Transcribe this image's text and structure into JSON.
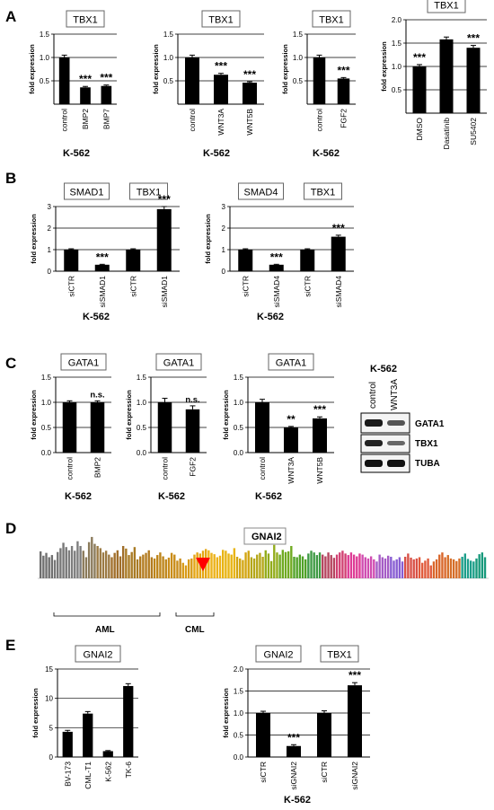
{
  "colors": {
    "bar": "#000000",
    "arrow": "#ff0000",
    "gnai2_bars": [
      "#6f6f6f",
      "#777777",
      "#7d7d7d",
      "#8a7a5a",
      "#9b7a43",
      "#a06e2a",
      "#a87a24",
      "#b27a1e",
      "#bd8418",
      "#c98c18",
      "#d79a16",
      "#e4a514",
      "#ecb21a",
      "#e8b412",
      "#d2a510",
      "#b4a617",
      "#92ac1a",
      "#70aa20",
      "#4fa126",
      "#3e9a44",
      "#b5445e",
      "#d14072",
      "#de3b95",
      "#d04cb0",
      "#a55bc5",
      "#875cd2",
      "#d84f45",
      "#e0593a",
      "#d9662a",
      "#d56e28",
      "#1c9e8a",
      "#17997b"
    ]
  },
  "panels": {
    "A": {
      "label": "A",
      "cell_line": "K-562"
    },
    "B": {
      "label": "B",
      "cell_line": "K-562"
    },
    "C": {
      "label": "C",
      "cell_line": "K-562"
    },
    "D": {
      "label": "D",
      "gene": "GNAI2",
      "groups": [
        "AML",
        "CML"
      ]
    },
    "E": {
      "label": "E",
      "cell_line": "K-562"
    }
  },
  "western": {
    "title": "K-562",
    "lanes": [
      "control",
      "WNT3A"
    ],
    "bands": [
      "GATA1",
      "TBX1",
      "TUBA"
    ]
  },
  "chart_data": [
    {
      "id": "A1",
      "type": "bar",
      "genes": [
        "TBX1"
      ],
      "categories": [
        "control",
        "BMP2",
        "BMP7"
      ],
      "values": [
        1.0,
        0.36,
        0.39
      ],
      "errors": [
        0.05,
        0.02,
        0.02
      ],
      "significance": [
        "",
        "***",
        "***"
      ],
      "ylabel": "fold expression",
      "xlabel": "K-562",
      "ylim": [
        0,
        1.5
      ],
      "yticks": [
        "0.5",
        "1.0",
        "1.5"
      ]
    },
    {
      "id": "A2",
      "type": "bar",
      "genes": [
        "TBX1"
      ],
      "categories": [
        "control",
        "WNT3A",
        "WNT5B"
      ],
      "values": [
        1.0,
        0.63,
        0.46
      ],
      "errors": [
        0.05,
        0.03,
        0.02
      ],
      "significance": [
        "",
        "***",
        "***"
      ],
      "ylabel": "fold expression",
      "xlabel": "K-562",
      "ylim": [
        0,
        1.5
      ],
      "yticks": [
        "0.5",
        "1.0",
        "1.5"
      ]
    },
    {
      "id": "A3",
      "type": "bar",
      "genes": [
        "TBX1"
      ],
      "categories": [
        "control",
        "FGF2"
      ],
      "values": [
        1.0,
        0.55
      ],
      "errors": [
        0.05,
        0.02
      ],
      "significance": [
        "",
        "***"
      ],
      "ylabel": "fold expression",
      "xlabel": "K-562",
      "ylim": [
        0,
        1.5
      ],
      "yticks": [
        "0.5",
        "1.0",
        "1.5"
      ]
    },
    {
      "id": "A4",
      "type": "bar",
      "genes": [
        "TBX1"
      ],
      "categories": [
        "DMSO",
        "Dasatinib",
        "SU5402"
      ],
      "values": [
        1.0,
        1.58,
        1.4
      ],
      "errors": [
        0.04,
        0.05,
        0.05
      ],
      "significance": [
        "***",
        "",
        "***"
      ],
      "ylabel": "fold expression",
      "xlabel": "",
      "ylim": [
        0,
        2.0
      ],
      "yticks": [
        "0.5",
        "1.0",
        "1.5",
        "2.0"
      ]
    },
    {
      "id": "B1",
      "type": "bar",
      "genes": [
        "SMAD1",
        "TBX1"
      ],
      "categories": [
        "siCTR",
        "siSMAD1",
        "siCTR",
        "siSMAD1"
      ],
      "values": [
        1.0,
        0.3,
        1.0,
        2.88
      ],
      "errors": [
        0.04,
        0.02,
        0.04,
        0.12
      ],
      "significance": [
        "",
        "***",
        "",
        "***"
      ],
      "ylabel": "fold expression",
      "xlabel": "K-562",
      "ylim": [
        0,
        3
      ],
      "yticks": [
        "0",
        "1",
        "2",
        "3"
      ]
    },
    {
      "id": "B2",
      "type": "bar",
      "genes": [
        "SMAD4",
        "TBX1"
      ],
      "categories": [
        "siCTR",
        "siSMAD4",
        "siCTR",
        "siSMAD4"
      ],
      "values": [
        1.0,
        0.3,
        1.0,
        1.6
      ],
      "errors": [
        0.04,
        0.02,
        0.04,
        0.07
      ],
      "significance": [
        "",
        "***",
        "",
        "***"
      ],
      "ylabel": "fold expression",
      "xlabel": "K-562",
      "ylim": [
        0,
        3
      ],
      "yticks": [
        "0",
        "1",
        "2",
        "3"
      ]
    },
    {
      "id": "C1",
      "type": "bar",
      "genes": [
        "GATA1"
      ],
      "categories": [
        "control",
        "BMP2"
      ],
      "values": [
        1.0,
        1.0
      ],
      "errors": [
        0.03,
        0.03
      ],
      "significance": [
        "",
        "n.s."
      ],
      "ylabel": "fold expression",
      "xlabel": "K-562",
      "ylim": [
        0,
        1.5
      ],
      "yticks": [
        "0.0",
        "0.5",
        "1.0",
        "1.5"
      ]
    },
    {
      "id": "C2",
      "type": "bar",
      "genes": [
        "GATA1"
      ],
      "categories": [
        "control",
        "FGF2"
      ],
      "values": [
        1.0,
        0.86
      ],
      "errors": [
        0.08,
        0.07
      ],
      "significance": [
        "",
        "n.s."
      ],
      "ylabel": "fold expression",
      "xlabel": "K-562",
      "ylim": [
        0,
        1.5
      ],
      "yticks": [
        "0.0",
        "0.5",
        "1.0",
        "1.5"
      ]
    },
    {
      "id": "C3",
      "type": "bar",
      "genes": [
        "GATA1"
      ],
      "categories": [
        "control",
        "WNT3A",
        "WNT5B"
      ],
      "values": [
        1.0,
        0.5,
        0.68
      ],
      "errors": [
        0.06,
        0.02,
        0.03
      ],
      "significance": [
        "",
        "**",
        "***"
      ],
      "ylabel": "fold expression",
      "xlabel": "K-562",
      "ylim": [
        0,
        1.5
      ],
      "yticks": [
        "0.0",
        "0.5",
        "1.0",
        "1.5"
      ]
    },
    {
      "id": "D",
      "type": "bar",
      "genes": [
        "GNAI2"
      ],
      "values": [
        125,
        105,
        118,
        98,
        108,
        85,
        122,
        140,
        165,
        145,
        130,
        150,
        128,
        172,
        150,
        128,
        98,
        168,
        192,
        160,
        150,
        140,
        120,
        128,
        110,
        98,
        118,
        130,
        102,
        150,
        138,
        108,
        122,
        145,
        88,
        102,
        110,
        118,
        130,
        98,
        92,
        108,
        120,
        102,
        88,
        96,
        118,
        110,
        82,
        92,
        72,
        60,
        88,
        92,
        110,
        120,
        115,
        128,
        136,
        130,
        118,
        112,
        98,
        105,
        132,
        128,
        115,
        110,
        140,
        100,
        92,
        85,
        120,
        128,
        98,
        92,
        110,
        118,
        100,
        130,
        115,
        80,
        155,
        120,
        110,
        132,
        122,
        125,
        150,
        100,
        98,
        110,
        102,
        88,
        115,
        128,
        120,
        108,
        120,
        110,
        102,
        120,
        108,
        95,
        110,
        120,
        128,
        115,
        108,
        120,
        110,
        102,
        115,
        110,
        98,
        92,
        102,
        88,
        78,
        110,
        98,
        92,
        105,
        100,
        82,
        88,
        98,
        78,
        100,
        115,
        96,
        88,
        92,
        98,
        72,
        82,
        92,
        60,
        78,
        88,
        110,
        120,
        98,
        108,
        92,
        88,
        80,
        92,
        100,
        115,
        90,
        82,
        78,
        92,
        112,
        120,
        98
      ],
      "xlabel": "",
      "ylabel": "",
      "ylim": [
        0,
        250
      ],
      "arrow": "CML"
    },
    {
      "id": "E1",
      "type": "bar",
      "genes": [
        "GNAI2"
      ],
      "categories": [
        "BV-173",
        "CML-T1",
        "K-562",
        "TK-6"
      ],
      "values": [
        4.3,
        7.4,
        1.0,
        12.1
      ],
      "errors": [
        0.25,
        0.35,
        0.1,
        0.4
      ],
      "significance": [
        "",
        "",
        "",
        ""
      ],
      "ylabel": "fold expression",
      "xlabel": "",
      "ylim": [
        0,
        15
      ],
      "yticks": [
        "0",
        "5",
        "10",
        "15"
      ]
    },
    {
      "id": "E2",
      "type": "bar",
      "genes": [
        "GNAI2",
        "TBX1"
      ],
      "categories": [
        "siCTR",
        "siGNAI2",
        "siCTR",
        "siGNAI2"
      ],
      "values": [
        1.0,
        0.25,
        1.0,
        1.63
      ],
      "errors": [
        0.04,
        0.03,
        0.05,
        0.06
      ],
      "significance": [
        "",
        "***",
        "",
        "***"
      ],
      "ylabel": "fold expression",
      "xlabel": "K-562",
      "ylim": [
        0,
        2.0
      ],
      "yticks": [
        "0.0",
        "0.5",
        "1.0",
        "1.5",
        "2.0"
      ]
    }
  ]
}
